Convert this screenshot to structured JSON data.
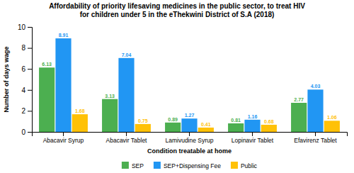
{
  "chart_data": {
    "type": "bar",
    "title": "Affordability of priority lifesaving medicines in the public sector, to treat HIV",
    "subtitle": "for children under 5 in the eThekwini District of S.A (2018)",
    "categories": [
      "Abacavir Syrup",
      "Abacavir Tablet",
      "Lamivudine Syrup",
      "Lopinavir Tablet",
      "Efavirenz Tablet"
    ],
    "series": [
      {
        "name": "SEP",
        "color": "#4CAF50",
        "values": [
          6.13,
          3.13,
          0.89,
          0.81,
          2.77
        ]
      },
      {
        "name": "SEP+Dispensing Fee",
        "color": "#2196F3",
        "values": [
          8.91,
          7.04,
          1.27,
          1.16,
          4.03
        ]
      },
      {
        "name": "Public",
        "color": "#FFC107",
        "values": [
          1.68,
          0.75,
          0.41,
          0.68,
          1.06
        ]
      }
    ],
    "xlabel": "Condition treatable at home",
    "ylabel": "Number of days wage",
    "ylim": [
      0,
      10
    ],
    "yticks": [
      0,
      2,
      4,
      6,
      8,
      10
    ],
    "grid": false,
    "legend": "bottom",
    "data_labels": true
  }
}
